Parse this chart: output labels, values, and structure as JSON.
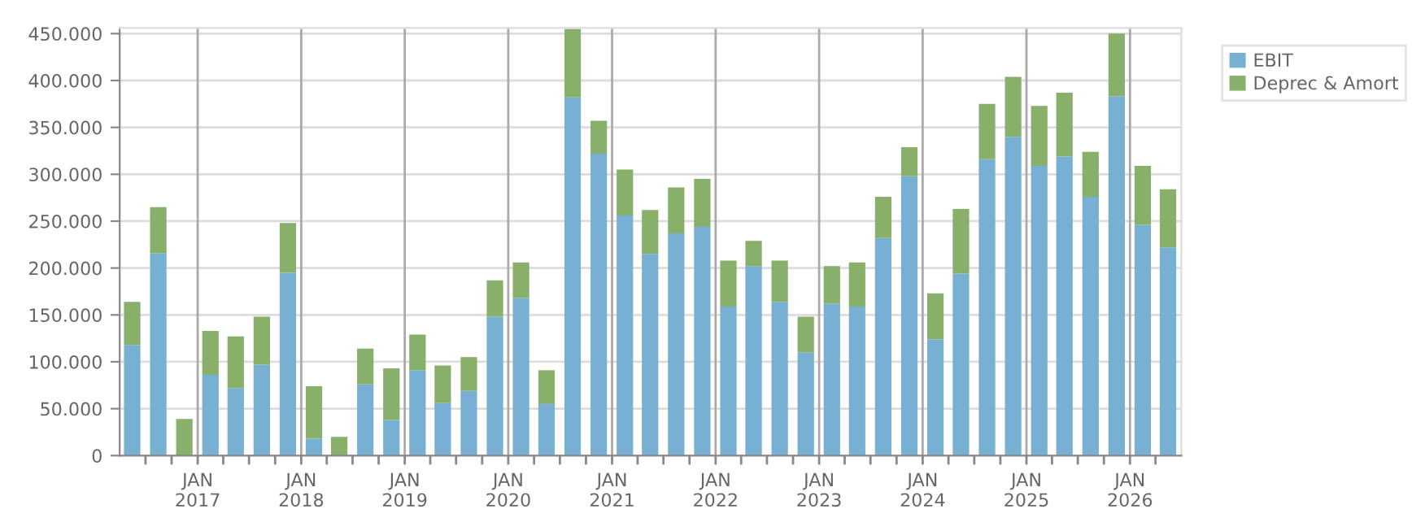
{
  "chart_data": {
    "type": "bar",
    "stacked": true,
    "x": [
      "2016-05-15",
      "2016-08-15",
      "2016-11-15",
      "2017-02-15",
      "2017-05-15",
      "2017-08-15",
      "2017-11-15",
      "2018-02-15",
      "2018-05-15",
      "2018-08-15",
      "2018-11-15",
      "2019-02-15",
      "2019-05-15",
      "2019-08-15",
      "2019-11-15",
      "2020-02-15",
      "2020-05-15",
      "2020-08-15",
      "2020-11-15",
      "2021-02-15",
      "2021-05-15",
      "2021-08-15",
      "2021-11-15",
      "2022-02-15",
      "2022-05-15",
      "2022-08-15",
      "2022-11-15",
      "2023-02-15",
      "2023-05-15",
      "2023-08-15",
      "2023-11-15",
      "2024-02-15",
      "2024-05-15",
      "2024-08-15",
      "2024-11-15",
      "2025-02-15",
      "2025-05-15",
      "2025-08-15",
      "2025-11-15",
      "2026-02-15",
      "2026-05-15"
    ],
    "series": [
      {
        "name": "EBIT",
        "color": "#78b0d3",
        "values": [
          118000,
          216000,
          0,
          86000,
          72000,
          97000,
          195000,
          18000,
          0,
          76000,
          38000,
          91000,
          56000,
          69000,
          148000,
          168000,
          55000,
          382000,
          322000,
          256000,
          215000,
          237000,
          244000,
          159000,
          202000,
          164000,
          110000,
          162000,
          159000,
          232000,
          298000,
          124000,
          194000,
          316000,
          340000,
          309000,
          319000,
          276000,
          383000,
          246000,
          222000
        ]
      },
      {
        "name": "Deprec & Amort",
        "color": "#88b06a",
        "values": [
          46000,
          49000,
          39000,
          47000,
          55000,
          51000,
          53000,
          56000,
          20000,
          38000,
          55000,
          38000,
          40000,
          36000,
          39000,
          38000,
          36000,
          73000,
          35000,
          49000,
          47000,
          49000,
          51000,
          49000,
          27000,
          44000,
          38000,
          40000,
          47000,
          44000,
          31000,
          49000,
          69000,
          59000,
          64000,
          64000,
          68000,
          48000,
          67000,
          63000,
          62000
        ]
      }
    ],
    "xlim": [
      "2016-04-01",
      "2026-07-01"
    ],
    "xticks": [
      {
        "value": "2016-07-01",
        "label": null
      },
      {
        "value": "2016-10-01",
        "label": null
      },
      {
        "value": "2017-01-01",
        "label": "JAN\n2017"
      },
      {
        "value": "2017-04-01",
        "label": null
      },
      {
        "value": "2017-07-01",
        "label": null
      },
      {
        "value": "2017-10-01",
        "label": null
      },
      {
        "value": "2018-01-01",
        "label": "JAN\n2018"
      },
      {
        "value": "2018-04-01",
        "label": null
      },
      {
        "value": "2018-07-01",
        "label": null
      },
      {
        "value": "2018-10-01",
        "label": null
      },
      {
        "value": "2019-01-01",
        "label": "JAN\n2019"
      },
      {
        "value": "2019-04-01",
        "label": null
      },
      {
        "value": "2019-07-01",
        "label": null
      },
      {
        "value": "2019-10-01",
        "label": null
      },
      {
        "value": "2020-01-01",
        "label": "JAN\n2020"
      },
      {
        "value": "2020-04-01",
        "label": null
      },
      {
        "value": "2020-07-01",
        "label": null
      },
      {
        "value": "2020-10-01",
        "label": null
      },
      {
        "value": "2021-01-01",
        "label": "JAN\n2021"
      },
      {
        "value": "2021-04-01",
        "label": null
      },
      {
        "value": "2021-07-01",
        "label": null
      },
      {
        "value": "2021-10-01",
        "label": null
      },
      {
        "value": "2022-01-01",
        "label": "JAN\n2022"
      },
      {
        "value": "2022-04-01",
        "label": null
      },
      {
        "value": "2022-07-01",
        "label": null
      },
      {
        "value": "2022-10-01",
        "label": null
      },
      {
        "value": "2023-01-01",
        "label": "JAN\n2023"
      },
      {
        "value": "2023-04-01",
        "label": null
      },
      {
        "value": "2023-07-01",
        "label": null
      },
      {
        "value": "2023-10-01",
        "label": null
      },
      {
        "value": "2024-01-01",
        "label": "JAN\n2024"
      },
      {
        "value": "2024-04-01",
        "label": null
      },
      {
        "value": "2024-07-01",
        "label": null
      },
      {
        "value": "2024-10-01",
        "label": null
      },
      {
        "value": "2025-01-01",
        "label": "JAN\n2025"
      },
      {
        "value": "2025-04-01",
        "label": null
      },
      {
        "value": "2025-07-01",
        "label": null
      },
      {
        "value": "2025-10-01",
        "label": null
      },
      {
        "value": "2026-01-01",
        "label": "JAN\n2026"
      },
      {
        "value": "2026-04-01",
        "label": null
      }
    ],
    "ylim": [
      0,
      456000
    ],
    "yticks": [
      0,
      {
        "value": 50000,
        "label": "50.000"
      },
      {
        "value": 100000,
        "label": "100.000"
      },
      {
        "value": 150000,
        "label": "150.000"
      },
      {
        "value": 200000,
        "label": "200.000"
      },
      {
        "value": 250000,
        "label": "250.000"
      },
      {
        "value": 300000,
        "label": "300.000"
      },
      {
        "value": 350000,
        "label": "350.000"
      },
      {
        "value": 400000,
        "label": "400.000"
      },
      {
        "value": 450000,
        "label": "450.000"
      }
    ],
    "grid": true,
    "legend": "top right"
  }
}
